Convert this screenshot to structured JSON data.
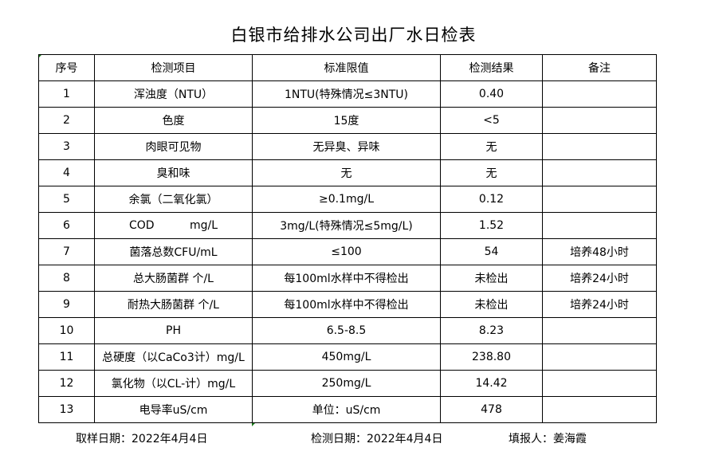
{
  "title": "白银市给排水公司出厂水日检表",
  "headers": [
    "序号",
    "检测项目",
    "标准限值",
    "检测结果",
    "备注"
  ],
  "rows": [
    [
      "1",
      "浑浊度（NTU）",
      "1NTU(特殊情况≤3NTU)",
      "0.40",
      ""
    ],
    [
      "2",
      "色度",
      "15度",
      "<5",
      ""
    ],
    [
      "3",
      "肉眼可见物",
      "无异臭、异味",
      "无",
      ""
    ],
    [
      "4",
      "臭和味",
      "无",
      "无",
      ""
    ],
    [
      "5",
      "余氯（二氧化氯）",
      "≥0.1mg/L",
      "0.12",
      ""
    ],
    [
      "6",
      "COD          mg/L",
      "3mg/L(特殊情况≤5mg/L)",
      "1.52",
      ""
    ],
    [
      "7",
      "菌落总数CFU/mL",
      "≤100",
      "54",
      "培养48小时"
    ],
    [
      "8",
      "总大肠菌群 个/L",
      "每100ml水样中不得检出",
      "未检出",
      "培养24小时"
    ],
    [
      "9",
      "耐热大肠菌群 个/L",
      "每100ml水样中不得检出",
      "未检出",
      "培养24小时"
    ],
    [
      "10",
      "PH",
      "6.5-8.5",
      "8.23",
      ""
    ],
    [
      "11",
      "总硬度（以CaCo3计）mg/L",
      "450mg/L",
      "238.80",
      ""
    ],
    [
      "12",
      "氯化物（以CL-计）mg/L",
      "250mg/L",
      "14.42",
      ""
    ],
    [
      "13",
      "电导率uS/cm",
      "单位：uS/cm",
      "478",
      ""
    ]
  ],
  "footer": {
    "sampling_date": "取样日期：2022年4月4日",
    "test_date": "检测日期：2022年4月4日",
    "reporter": "填报人：姜海霞"
  }
}
